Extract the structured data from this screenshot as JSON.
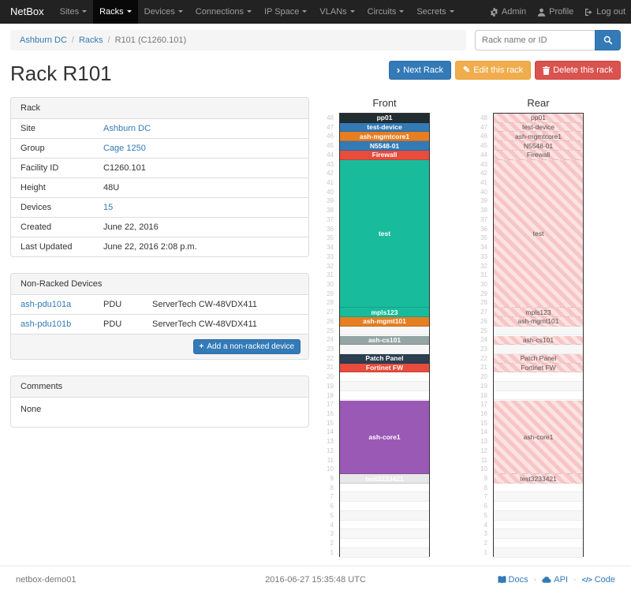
{
  "navbar": {
    "brand": "NetBox",
    "items": [
      {
        "label": "Sites",
        "active": false
      },
      {
        "label": "Racks",
        "active": true
      },
      {
        "label": "Devices",
        "active": false
      },
      {
        "label": "Connections",
        "active": false
      },
      {
        "label": "IP Space",
        "active": false
      },
      {
        "label": "VLANs",
        "active": false
      },
      {
        "label": "Circuits",
        "active": false
      },
      {
        "label": "Secrets",
        "active": false
      }
    ],
    "admin_label": "Admin",
    "profile_label": "Profile",
    "logout_label": "Log out"
  },
  "breadcrumb": {
    "items": [
      {
        "label": "Ashburn DC",
        "link": true
      },
      {
        "label": "Racks",
        "link": true
      },
      {
        "label": "R101 (C1260.101)",
        "link": false
      }
    ]
  },
  "search": {
    "placeholder": "Rack name or ID"
  },
  "actions": {
    "next_label": "Next Rack",
    "edit_label": "Edit this rack",
    "delete_label": "Delete this rack"
  },
  "page_title": "Rack R101",
  "rack_panel": {
    "title": "Rack",
    "rows": [
      {
        "label": "Site",
        "value": "Ashburn DC",
        "link": true
      },
      {
        "label": "Group",
        "value": "Cage 1250",
        "link": true
      },
      {
        "label": "Facility ID",
        "value": "C1260.101",
        "link": false
      },
      {
        "label": "Height",
        "value": "48U",
        "link": false
      },
      {
        "label": "Devices",
        "value": "15",
        "link": true
      },
      {
        "label": "Created",
        "value": "June 22, 2016",
        "link": false
      },
      {
        "label": "Last Updated",
        "value": "June 22, 2016 2:08 p.m.",
        "link": false
      }
    ]
  },
  "nonracked_panel": {
    "title": "Non-Racked Devices",
    "rows": [
      {
        "name": "ash-pdu101a",
        "role": "PDU",
        "type": "ServerTech CW-48VDX411"
      },
      {
        "name": "ash-pdu101b",
        "role": "PDU",
        "type": "ServerTech CW-48VDX411"
      }
    ],
    "add_button": "Add a non-racked device"
  },
  "comments_panel": {
    "title": "Comments",
    "body": "None"
  },
  "elevation": {
    "front_title": "Front",
    "rear_title": "Rear",
    "units": 48,
    "devices": [
      {
        "name": "pp01",
        "u": 48,
        "height": 1,
        "color": "#222d32",
        "text": "#ffffff"
      },
      {
        "name": "test-device",
        "u": 47,
        "height": 1,
        "color": "#337ab7",
        "text": "#ffffff"
      },
      {
        "name": "ash-mgmtcore1",
        "u": 46,
        "height": 1,
        "color": "#e67e22",
        "text": "#ffffff"
      },
      {
        "name": "N5548-01",
        "u": 45,
        "height": 1,
        "color": "#337ab7",
        "text": "#ffffff"
      },
      {
        "name": "Firewall",
        "u": 44,
        "height": 1,
        "color": "#e74c3c",
        "text": "#ffffff"
      },
      {
        "name": "test",
        "u": 28,
        "height": 16,
        "color": "#18bc9c",
        "text": "#ffffff"
      },
      {
        "name": "mpls123",
        "u": 27,
        "height": 1,
        "color": "#18bc9c",
        "text": "#ffffff"
      },
      {
        "name": "ash-mgmt101",
        "u": 26,
        "height": 1,
        "color": "#e67e22",
        "text": "#ffffff"
      },
      {
        "name": "ash-cs101",
        "u": 24,
        "height": 1,
        "color": "#95a5a6",
        "text": "#ffffff"
      },
      {
        "name": "Patch Panel",
        "u": 22,
        "height": 1,
        "color": "#2c3e50",
        "text": "#ffffff"
      },
      {
        "name": "Fortinet FW",
        "u": 21,
        "height": 1,
        "color": "#e74c3c",
        "text": "#ffffff"
      },
      {
        "name": "ash-core1",
        "u": 10,
        "height": 8,
        "color": "#9b59b6",
        "text": "#ffffff"
      },
      {
        "name": "test3233421",
        "u": 9,
        "height": 1,
        "color": "#e8e8e8",
        "text": "#ffffff"
      }
    ]
  },
  "footer": {
    "hostname": "netbox-demo01",
    "timestamp": "2016-06-27 15:35:48 UTC",
    "links": [
      {
        "label": "Docs",
        "icon": "book"
      },
      {
        "label": "API",
        "icon": "cloud"
      },
      {
        "label": "Code",
        "icon": "code"
      }
    ]
  },
  "colors": {
    "accent": "#337ab7",
    "warning": "#f0ad4e",
    "danger": "#d9534f",
    "rear_hatch": "#f7c5c5"
  }
}
